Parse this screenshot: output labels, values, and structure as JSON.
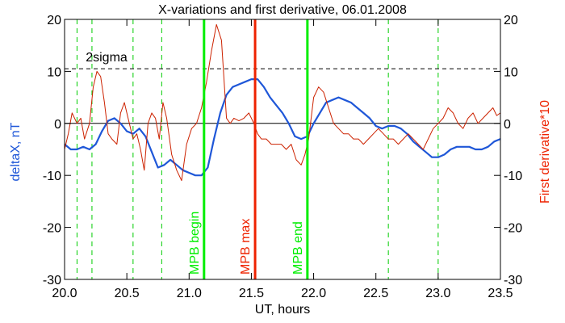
{
  "chart_data": {
    "type": "line",
    "title": "X-variations and first derivative, 06.01.2008",
    "xlabel": "UT, hours",
    "ylabel_left": "deltaX, nT",
    "ylabel_right": "First derivative*10",
    "xlim": [
      20.0,
      23.5
    ],
    "ylim": [
      -30,
      20
    ],
    "xticks": [
      20.0,
      20.5,
      21.0,
      21.5,
      22.0,
      22.5,
      23.0,
      23.5
    ],
    "xtick_labels": [
      "20.0",
      "20.5",
      "21.0",
      "21.5",
      "22.0",
      "22.5",
      "23.0",
      "23.5"
    ],
    "yticks": [
      -30,
      -20,
      -10,
      0,
      10,
      20
    ],
    "ytick_labels": [
      "-30",
      "-20",
      "-10",
      "0",
      "10",
      "20"
    ],
    "sigma_line": {
      "y": 10.5,
      "label": "2sigma"
    },
    "zero_line": {
      "y": 0
    },
    "vertical_dashed_x": [
      20.1,
      20.22,
      20.55,
      20.78,
      22.6,
      23.0
    ],
    "markers": [
      {
        "x": 21.12,
        "label": "MPB begin",
        "color": "#00ee00"
      },
      {
        "x": 21.53,
        "label": "MPB max",
        "color": "#ee2200"
      },
      {
        "x": 21.95,
        "label": "MPB end",
        "color": "#00ee00"
      }
    ],
    "series": [
      {
        "color": "#1f57d8",
        "x": [
          20.0,
          20.05,
          20.1,
          20.15,
          20.2,
          20.25,
          20.3,
          20.35,
          20.4,
          20.45,
          20.5,
          20.55,
          20.6,
          20.65,
          20.7,
          20.75,
          20.8,
          20.85,
          20.9,
          20.95,
          21.0,
          21.05,
          21.1,
          21.15,
          21.2,
          21.25,
          21.3,
          21.35,
          21.4,
          21.45,
          21.5,
          21.55,
          21.6,
          21.65,
          21.7,
          21.75,
          21.8,
          21.85,
          21.9,
          21.95,
          22.0,
          22.05,
          22.1,
          22.15,
          22.2,
          22.25,
          22.3,
          22.35,
          22.4,
          22.45,
          22.5,
          22.55,
          22.6,
          22.65,
          22.7,
          22.75,
          22.8,
          22.85,
          22.9,
          22.95,
          23.0,
          23.05,
          23.1,
          23.15,
          23.2,
          23.25,
          23.3,
          23.35,
          23.4,
          23.45,
          23.5
        ],
        "y": [
          -4,
          -5,
          -5,
          -4.5,
          -5,
          -4,
          -1.5,
          0.5,
          1,
          0,
          -1.5,
          -2,
          -1,
          -2.5,
          -5.5,
          -8.5,
          -8,
          -7,
          -8,
          -9,
          -9.5,
          -10,
          -10,
          -8.5,
          -3,
          2,
          5.5,
          7,
          7.5,
          8,
          8.5,
          8.5,
          7,
          5,
          3.5,
          2,
          0,
          -2.5,
          -3,
          -2.5,
          0,
          2,
          4,
          4.5,
          5,
          4.5,
          4,
          3,
          2,
          1,
          -0.5,
          -1,
          -0.5,
          -0.5,
          -1,
          -2,
          -3.5,
          -4.5,
          -5.5,
          -6.5,
          -6.5,
          -6,
          -5,
          -4.5,
          -4.5,
          -4.5,
          -5,
          -5,
          -4.5,
          -3.5,
          -3
        ]
      },
      {
        "color": "#cc2200",
        "x": [
          20.0,
          20.03,
          20.06,
          20.1,
          20.13,
          20.16,
          20.2,
          20.23,
          20.26,
          20.29,
          20.32,
          20.35,
          20.38,
          20.42,
          20.45,
          20.48,
          20.51,
          20.55,
          20.58,
          20.61,
          20.64,
          20.67,
          20.7,
          20.73,
          20.76,
          20.79,
          20.82,
          20.86,
          20.9,
          20.94,
          20.98,
          21.02,
          21.06,
          21.1,
          21.14,
          21.18,
          21.22,
          21.26,
          21.3,
          21.33,
          21.36,
          21.4,
          21.44,
          21.48,
          21.52,
          21.55,
          21.58,
          21.62,
          21.66,
          21.7,
          21.74,
          21.78,
          21.82,
          21.86,
          21.9,
          21.93,
          21.96,
          22.0,
          22.04,
          22.08,
          22.12,
          22.16,
          22.2,
          22.24,
          22.28,
          22.32,
          22.36,
          22.4,
          22.44,
          22.48,
          22.52,
          22.56,
          22.6,
          22.64,
          22.68,
          22.72,
          22.76,
          22.8,
          22.84,
          22.88,
          22.92,
          22.96,
          23.0,
          23.04,
          23.08,
          23.12,
          23.16,
          23.2,
          23.24,
          23.28,
          23.32,
          23.36,
          23.4,
          23.44,
          23.47,
          23.5
        ],
        "y": [
          -5,
          -2,
          2,
          0,
          1,
          -3,
          0,
          7,
          10,
          9,
          4,
          -2,
          -3,
          -4,
          2,
          4,
          1,
          -3,
          -2,
          -5,
          -9,
          0,
          2,
          1,
          -3,
          4,
          1,
          -6,
          -9,
          -11,
          -4,
          -1,
          0,
          3,
          8,
          14,
          19,
          16,
          1,
          0,
          1,
          0.5,
          1,
          2,
          0,
          -2,
          -3,
          -3,
          -4,
          -4,
          -4,
          -5,
          -4,
          -7,
          -8,
          -6,
          -3,
          5,
          7,
          6,
          3,
          0,
          -1,
          -2,
          -2,
          -3,
          -3,
          -4,
          -3,
          -2,
          -1,
          -2,
          -3,
          -3,
          -4,
          -3,
          -2,
          -3,
          -4,
          -5,
          -3,
          -1,
          0,
          1,
          3,
          2,
          0,
          -1,
          1,
          2,
          0,
          1,
          2,
          3,
          1.5,
          2
        ]
      }
    ]
  }
}
